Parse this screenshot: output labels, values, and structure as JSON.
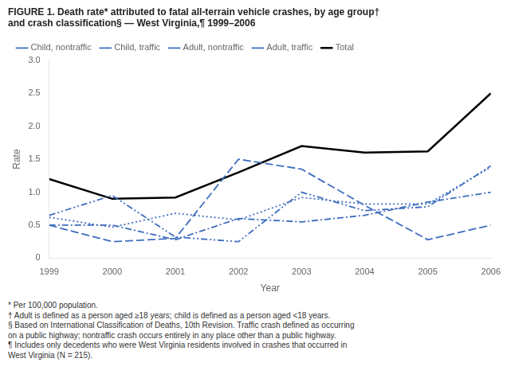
{
  "chart_data": {
    "type": "line",
    "title": [
      "FIGURE 1. Death rate* attributed to fatal all-terrain vehicle crashes, by age group†",
      "and crash classification§ — West Virginia,¶ 1999–2006"
    ],
    "x_label": "Year",
    "y_label": "Rate",
    "x": [
      1999,
      2000,
      2001,
      2002,
      2003,
      2004,
      2005,
      2006
    ],
    "series": [
      {
        "name": "Total",
        "color": "#000000",
        "line_style": "solid",
        "values": [
          1.2,
          0.9,
          0.92,
          1.3,
          1.7,
          1.6,
          1.62,
          2.5
        ]
      },
      {
        "name": "Adult, traffic",
        "color": "#3e6dbf",
        "line_style": "dashdot",
        "values": [
          0.5,
          0.5,
          0.28,
          0.6,
          0.55,
          0.65,
          0.85,
          1.0
        ]
      },
      {
        "name": "Adult, nontraffic",
        "color": "#3e6dbf",
        "line_style": "dotted",
        "values": [
          0.62,
          0.47,
          0.68,
          0.58,
          0.92,
          0.82,
          0.82,
          1.38
        ]
      },
      {
        "name": "Child, traffic",
        "color": "#3e6dbf",
        "line_style": "dashed",
        "values": [
          0.5,
          0.25,
          0.3,
          1.5,
          1.35,
          0.8,
          0.28,
          0.5
        ]
      },
      {
        "name": "Child, nontraffic",
        "color": "#3e6dbf",
        "line_style": "dashdotdot",
        "values": [
          0.65,
          0.95,
          0.32,
          0.25,
          1.0,
          0.72,
          0.78,
          1.4
        ]
      }
    ],
    "xlim": [
      1999,
      2006
    ],
    "xticks": [
      1999,
      2000,
      2001,
      2002,
      2003,
      2004,
      2005,
      2006
    ],
    "ylim": [
      0,
      3.0
    ],
    "yticks": [
      0,
      0.5,
      {
        "value": 1.0,
        "label": "1.0"
      },
      1.5,
      {
        "value": 2.0,
        "label": "2.0"
      },
      2.5,
      {
        "value": 3.0,
        "label": "3.0"
      }
    ],
    "grid": false,
    "legend": "top",
    "annotations": [
      "* Per 100,000 population.",
      "† Adult is defined as a person aged ≥18 years; child is defined as a person aged <18 years.",
      "§ Based on International Classification of Deaths, 10th Revision. Traffic crash defined as occurring",
      "on a public highway; nontraffic crash occurs entirely in any place other than a public highway.",
      "¶ Includes only decedents who were West Virginia residents involved in crashes that occurred in",
      "West Virginia (N = 215)."
    ]
  }
}
